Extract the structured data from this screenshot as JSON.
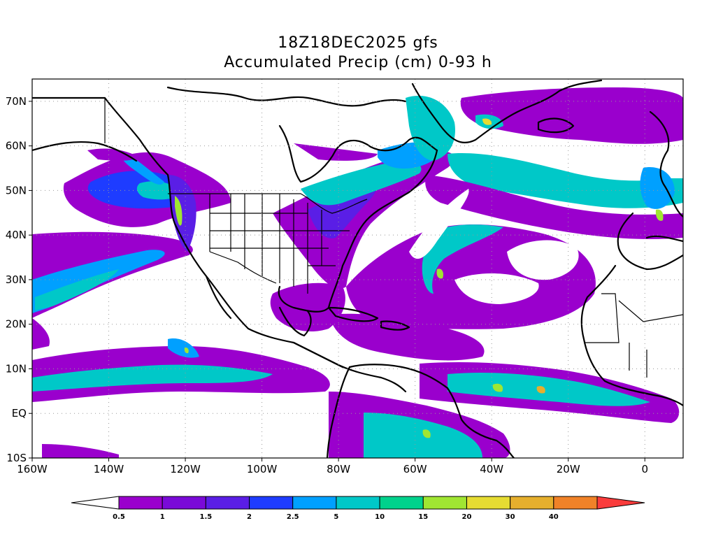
{
  "title": {
    "line1": "18Z18DEC2025 gfs",
    "line2": "Accumulated Precip (cm) 0-93 h"
  },
  "map": {
    "lon_range": [
      -160,
      10
    ],
    "lat_range": [
      -10,
      75
    ],
    "x_ticks": [
      {
        "lon": -160,
        "label": "160W"
      },
      {
        "lon": -140,
        "label": "140W"
      },
      {
        "lon": -120,
        "label": "120W"
      },
      {
        "lon": -100,
        "label": "100W"
      },
      {
        "lon": -80,
        "label": "80W"
      },
      {
        "lon": -60,
        "label": "60W"
      },
      {
        "lon": -40,
        "label": "40W"
      },
      {
        "lon": -20,
        "label": "20W"
      },
      {
        "lon": 0,
        "label": "0"
      }
    ],
    "y_ticks": [
      {
        "lat": -10,
        "label": "10S"
      },
      {
        "lat": 0,
        "label": "EQ"
      },
      {
        "lat": 10,
        "label": "10N"
      },
      {
        "lat": 20,
        "label": "20N"
      },
      {
        "lat": 30,
        "label": "30N"
      },
      {
        "lat": 40,
        "label": "40N"
      },
      {
        "lat": 50,
        "label": "50N"
      },
      {
        "lat": 60,
        "label": "60N"
      },
      {
        "lat": 70,
        "label": "70N"
      }
    ],
    "grid": true
  },
  "colorbar": {
    "colors": [
      "#ffffff",
      "#9a00cd",
      "#7a0ad8",
      "#5a1ee6",
      "#1e3cff",
      "#00a0ff",
      "#00c8c8",
      "#00d28c",
      "#a0e632",
      "#e6dc32",
      "#e6af2d",
      "#f08228",
      "#fa3c3c"
    ],
    "labels": [
      "0.5",
      "1",
      "1.5",
      "2",
      "2.5",
      "5",
      "10",
      "15",
      "20",
      "30",
      "40"
    ]
  },
  "levels": [
    {
      "name": "L1",
      "color": "#9a00cd"
    },
    {
      "name": "L2",
      "color": "#5a1ee6"
    },
    {
      "name": "L3",
      "color": "#1e3cff"
    },
    {
      "name": "L4",
      "color": "#00a0ff"
    },
    {
      "name": "L5",
      "color": "#00c8c8"
    },
    {
      "name": "L6",
      "color": "#a0e632"
    },
    {
      "name": "L7",
      "color": "#e6dc32"
    }
  ]
}
